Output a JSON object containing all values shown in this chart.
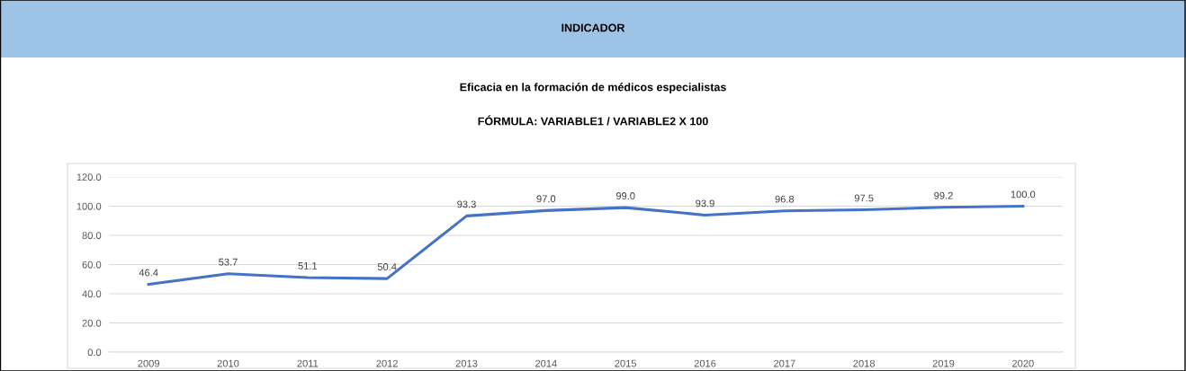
{
  "chart_data": {
    "type": "line",
    "title": "INDICADOR",
    "subtitle": "Eficacia en la formación de médicos especialistas",
    "annotations": [
      "FÓRMULA: VARIABLE1 / VARIABLE2 X 100"
    ],
    "categories": [
      "2009",
      "2010",
      "2011",
      "2012",
      "2013",
      "2014",
      "2015",
      "2016",
      "2017",
      "2018",
      "2019",
      "2020"
    ],
    "series": [
      {
        "color": "#4472c4",
        "values": [
          46.4,
          53.7,
          51.1,
          50.4,
          93.3,
          97.0,
          99.0,
          93.9,
          96.8,
          97.5,
          99.2,
          100.0
        ],
        "value_labels": [
          "46.4",
          "53.7",
          "51.1",
          "50.4",
          "93.3",
          "97.0",
          "99.0",
          "93.9",
          "96.8",
          "97.5",
          "99.2",
          "100.0"
        ]
      }
    ],
    "ylim": [
      0,
      120
    ],
    "yticks": [
      {
        "value": 0,
        "label": "0.0"
      },
      {
        "value": 20,
        "label": "20.0"
      },
      {
        "value": 40,
        "label": "40.0"
      },
      {
        "value": 60,
        "label": "60.0"
      },
      {
        "value": 80,
        "label": "80.0"
      },
      {
        "value": 100,
        "label": "100.0"
      },
      {
        "value": 120,
        "label": "120.0"
      }
    ],
    "grid": "y",
    "marker": "none",
    "line_style": "solid"
  }
}
